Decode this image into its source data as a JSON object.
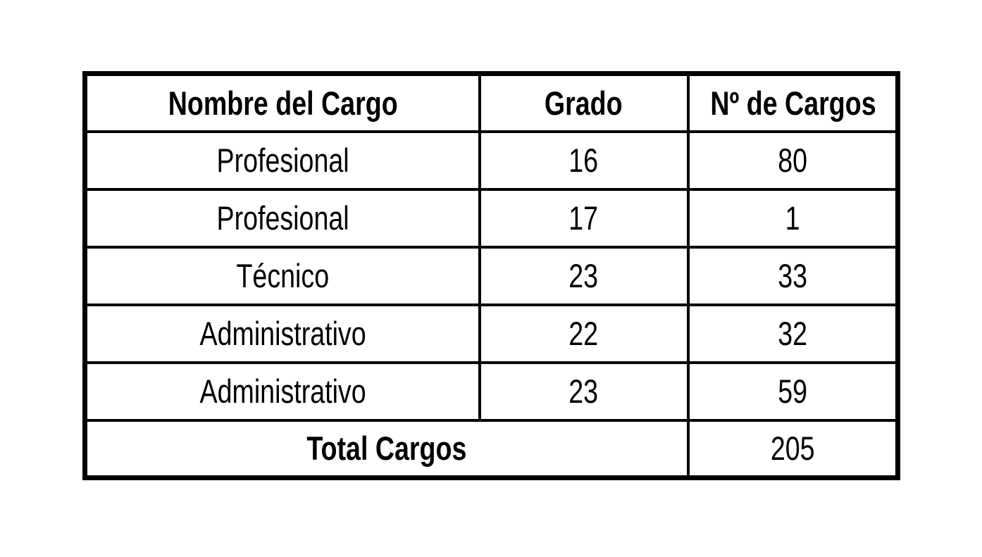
{
  "page": {
    "background_color": "#ffffff",
    "border_color": "#000000",
    "text_color": "#000000"
  },
  "chart_data": {
    "type": "table",
    "columns": [
      "Nombre del Cargo",
      "Grado",
      "Nº de Cargos"
    ],
    "rows": [
      [
        "Profesional",
        "16",
        "80"
      ],
      [
        "Profesional",
        "17",
        "1"
      ],
      [
        "Técnico",
        "23",
        "33"
      ],
      [
        "Administrativo",
        "22",
        "32"
      ],
      [
        "Administrativo",
        "23",
        "59"
      ]
    ],
    "total_label": "Total Cargos",
    "total_value": "205"
  }
}
